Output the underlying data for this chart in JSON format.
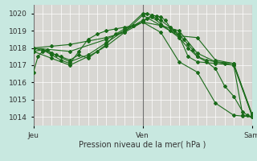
{
  "background_color": "#c8e8e0",
  "plot_bg_color": "#c8e8e0",
  "grid_h_color": "#e8c8c8",
  "grid_v_color": "#ffffff",
  "line_color": "#1a6b1a",
  "xlabel": "Pression niveau de la mer( hPa )",
  "ylim": [
    1013.5,
    1020.5
  ],
  "yticks": [
    1014,
    1015,
    1016,
    1017,
    1018,
    1019,
    1020
  ],
  "xtick_labels": [
    "Jeu",
    "Ven",
    "Sam"
  ],
  "xtick_positions": [
    0,
    12,
    24
  ],
  "vline_positions": [
    0,
    12,
    24
  ],
  "lines": [
    {
      "x": [
        0,
        0.5,
        1,
        1.5,
        2,
        2.5,
        3,
        4,
        5,
        6,
        7,
        8,
        9,
        10,
        11,
        12,
        12.5,
        13,
        13.5,
        14,
        14.5,
        15,
        15.5,
        16,
        16.5,
        17,
        17.5,
        18,
        19,
        20,
        21,
        22,
        23,
        23.5,
        24
      ],
      "y": [
        1016.6,
        1017.5,
        1017.8,
        1017.9,
        1017.7,
        1017.6,
        1017.5,
        1017.3,
        1017.6,
        1017.4,
        1017.8,
        1018.2,
        1018.8,
        1019.1,
        1019.3,
        1019.5,
        1019.7,
        1019.9,
        1019.85,
        1019.8,
        1019.6,
        1019.2,
        1019.0,
        1018.8,
        1018.5,
        1018.2,
        1017.9,
        1017.5,
        1017.2,
        1016.8,
        1015.8,
        1015.2,
        1014.3,
        1014.1,
        1014.0
      ]
    },
    {
      "x": [
        0,
        1,
        2,
        3,
        4,
        5,
        6,
        7,
        8,
        9,
        10,
        11,
        12,
        13,
        14,
        15,
        16,
        17,
        18,
        19,
        20,
        21,
        22,
        23,
        24
      ],
      "y": [
        1017.8,
        1017.9,
        1017.6,
        1017.3,
        1017.1,
        1017.8,
        1018.5,
        1018.8,
        1019.0,
        1019.1,
        1019.2,
        1019.3,
        1019.6,
        1019.8,
        1019.4,
        1019.0,
        1018.6,
        1018.0,
        1017.5,
        1017.3,
        1017.2,
        1017.1,
        1017.0,
        1014.1,
        1014.0
      ]
    },
    {
      "x": [
        0,
        2,
        4,
        6,
        8,
        10,
        12,
        12.5,
        13,
        13.5,
        14,
        15,
        16,
        17,
        18,
        20,
        22,
        24
      ],
      "y": [
        1018.0,
        1017.7,
        1017.2,
        1017.6,
        1018.3,
        1019.0,
        1020.0,
        1020.0,
        1019.9,
        1019.7,
        1019.6,
        1019.2,
        1018.7,
        1017.5,
        1017.2,
        1017.1,
        1017.0,
        1014.1
      ]
    },
    {
      "x": [
        0,
        2,
        4,
        6,
        8,
        10,
        12,
        14,
        16,
        18,
        20,
        22,
        24
      ],
      "y": [
        1017.8,
        1017.4,
        1017.0,
        1017.5,
        1018.1,
        1018.9,
        1019.9,
        1019.3,
        1018.7,
        1018.6,
        1017.3,
        1017.1,
        1014.1
      ]
    },
    {
      "x": [
        0,
        2,
        4,
        6,
        8,
        10,
        12,
        14,
        16,
        18,
        20,
        22,
        24
      ],
      "y": [
        1018.0,
        1018.1,
        1018.2,
        1018.4,
        1018.6,
        1018.9,
        1019.5,
        1019.3,
        1019.0,
        1017.7,
        1017.2,
        1017.1,
        1014.2
      ]
    },
    {
      "x": [
        0,
        4,
        8,
        12,
        14,
        16,
        18,
        20,
        22,
        23,
        24
      ],
      "y": [
        1018.0,
        1017.8,
        1018.5,
        1019.5,
        1018.9,
        1017.2,
        1016.6,
        1014.8,
        1014.1,
        1014.05,
        1014.0
      ]
    }
  ],
  "figsize": [
    3.2,
    2.0
  ],
  "dpi": 100
}
